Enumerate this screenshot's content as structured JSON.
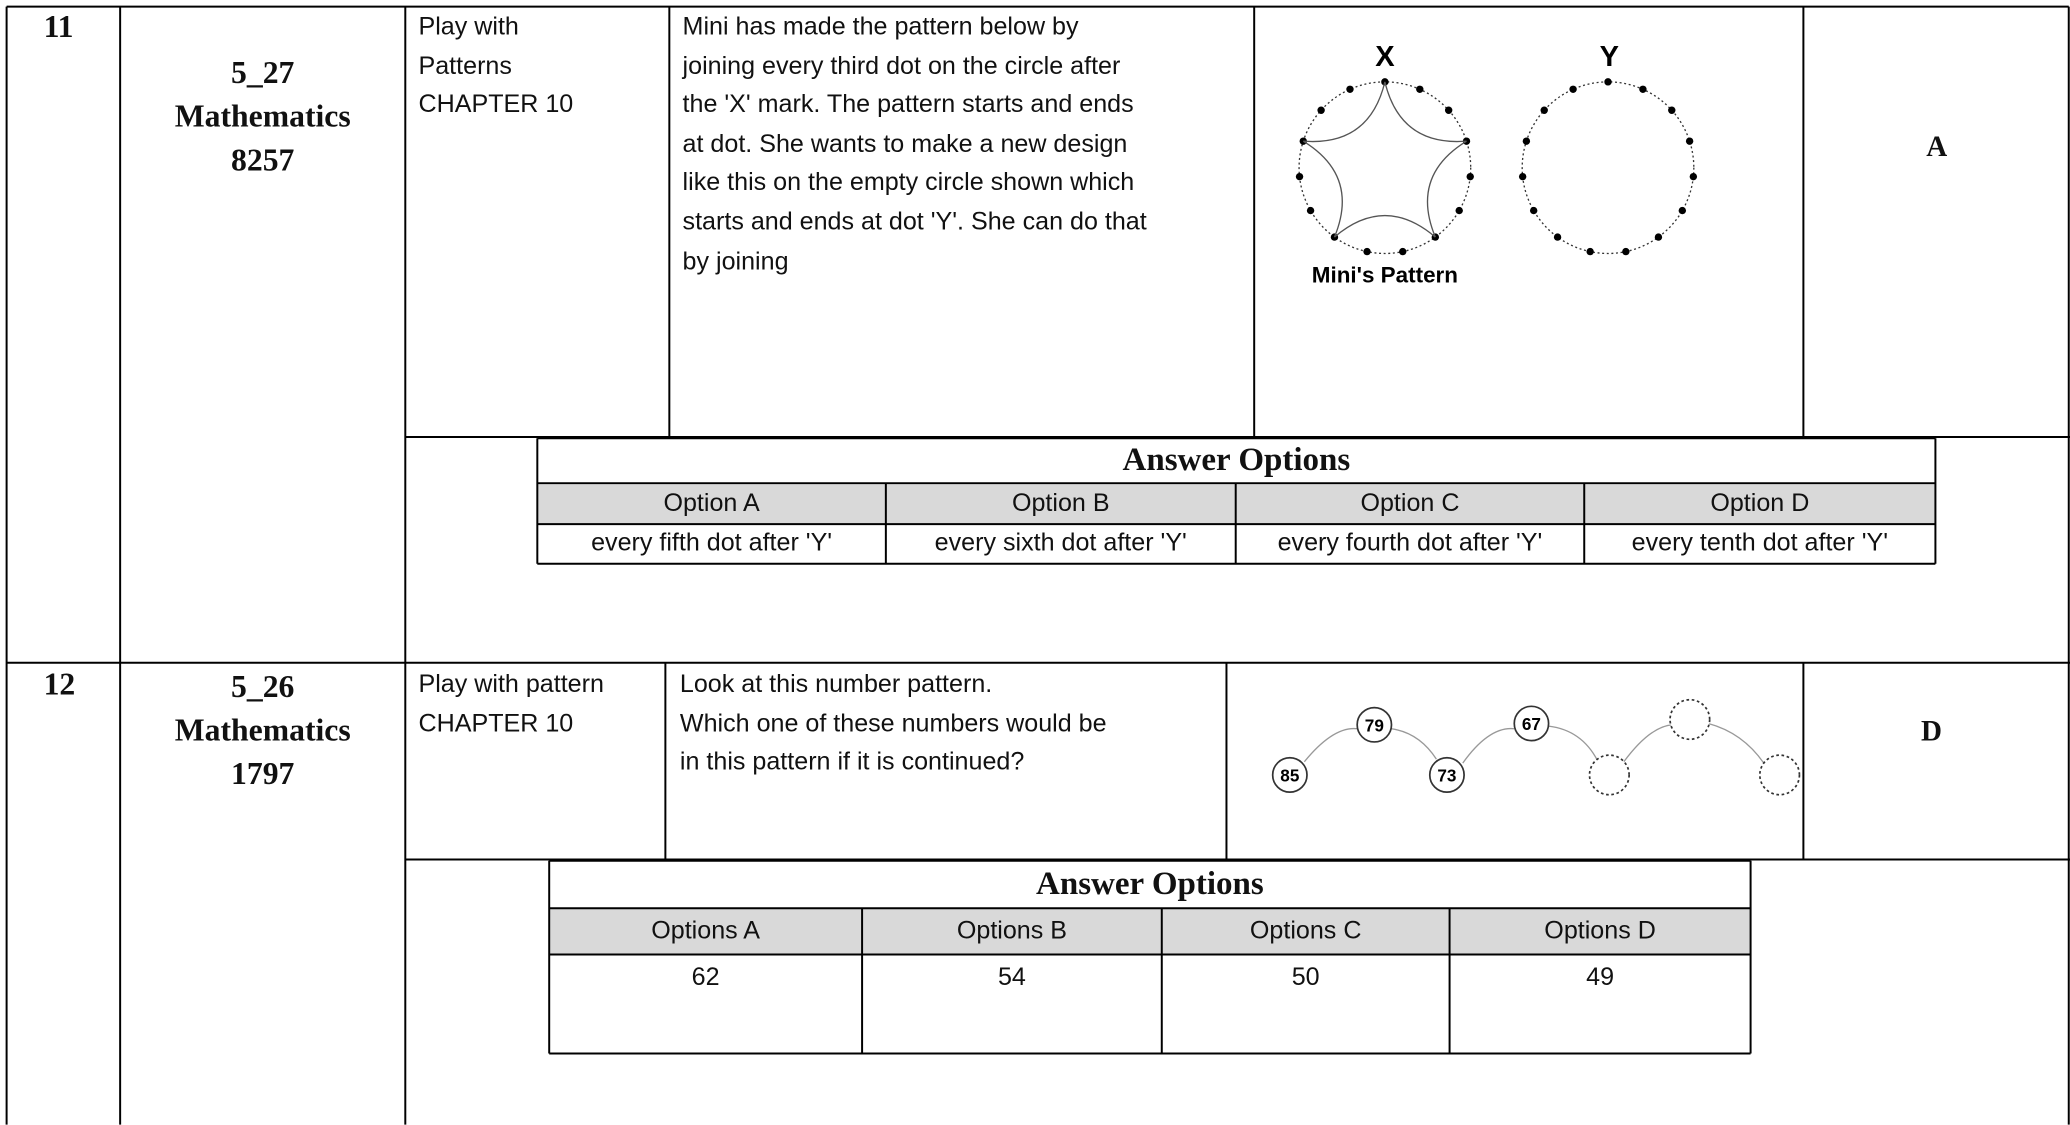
{
  "rows": [
    {
      "number": "11",
      "code": [
        "5_27",
        "Mathematics",
        "8257"
      ],
      "chapter": [
        "Play with",
        "Patterns",
        "CHAPTER 10"
      ],
      "question": [
        "Mini has made the pattern below by",
        "joining every third dot on the circle after",
        "the 'X' mark. The pattern starts and ends",
        "at dot. She wants to make a new design",
        "like this on the empty circle shown which",
        "starts and ends at dot 'Y'. She can do that",
        "by joining"
      ],
      "figure": {
        "labels": [
          "X",
          "Y"
        ],
        "caption": "Mini's Pattern"
      },
      "answer": "A",
      "options": {
        "title": "Answer Options",
        "headers": [
          "Option A",
          "Option B",
          "Option  C",
          "Option  D"
        ],
        "values": [
          "every fifth dot after 'Y'",
          "every sixth dot after 'Y'",
          "every fourth dot after 'Y'",
          "every tenth dot after 'Y'"
        ]
      }
    },
    {
      "number": "12",
      "code": [
        "5_26",
        "Mathematics",
        "1797"
      ],
      "chapter": [
        "Play with pattern",
        "CHAPTER 10"
      ],
      "question": [
        "Look at this number pattern.",
        "Which one of these numbers would be",
        "in this pattern if it is continued?"
      ],
      "figure": {
        "labels": [
          "85",
          "79",
          "73",
          "67"
        ]
      },
      "answer": "D",
      "options": {
        "title": "Answer Options",
        "headers": [
          "Options A",
          "Options B",
          "Options C",
          "Options D"
        ],
        "values": [
          "62",
          "54",
          "50",
          "49"
        ]
      }
    }
  ]
}
